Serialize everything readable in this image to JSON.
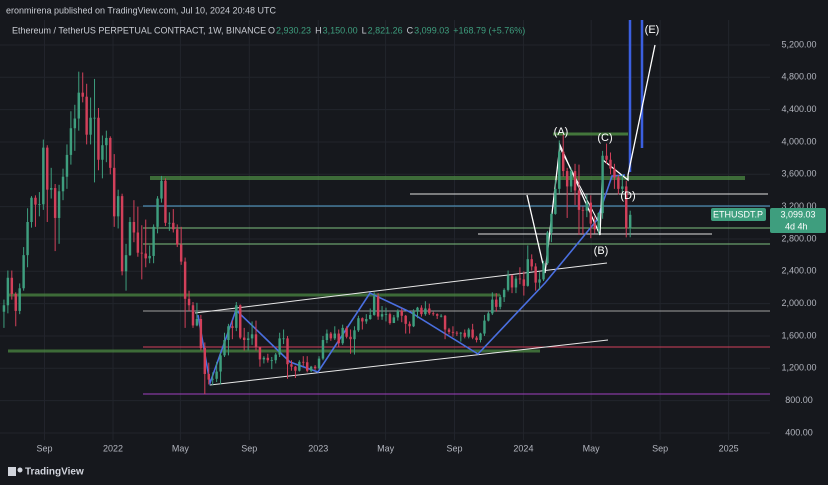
{
  "chart_data": {
    "type": "candlestick",
    "published": "eronmirena published on TradingView.com, Jul 10, 2024 20:48 UTC",
    "title": "Ethereum / TetherUS PERPETUAL CONTRACT, 1W, BINANCE",
    "ohlc_labels": [
      {
        "label": "O",
        "value": "2,930.23"
      },
      {
        "label": "H",
        "value": "3,150.00"
      },
      {
        "label": "L",
        "value": "2,821.26"
      },
      {
        "label": "C",
        "value": "3,099.03"
      }
    ],
    "change": "+168.79 (+5.76%)",
    "symbol_tag": "ETHUSDT.P",
    "last_price_label": "3,099.03",
    "countdown": "4d 4h",
    "wave_labels": [
      "(A)",
      "(B)",
      "(C)",
      "(D)",
      "(E)"
    ],
    "footer": "TradingView",
    "up_color": "#3e9e7e",
    "down_color": "#d2405a",
    "ylim": [
      313,
      5509
    ],
    "yticks": [
      {
        "value": 400,
        "label": "400.00"
      },
      {
        "value": 800,
        "label": "800.00"
      },
      {
        "value": 1200,
        "label": "1,200.00"
      },
      {
        "value": 1600,
        "label": "1,600.00"
      },
      {
        "value": 2000,
        "label": "2,000.00"
      },
      {
        "value": 2400,
        "label": "2,400.00"
      },
      {
        "value": 2800,
        "label": "2,800.00"
      },
      {
        "value": 3200,
        "label": "3,200.00"
      },
      {
        "value": 3600,
        "label": "3,600.00"
      },
      {
        "value": 4000,
        "label": "4,000.00"
      },
      {
        "value": 4400,
        "label": "4,400.00"
      },
      {
        "value": 4800,
        "label": "4,800.00"
      },
      {
        "value": 5200,
        "label": "5,200.00"
      }
    ],
    "xlim": [
      -1,
      194.5
    ],
    "xticks": [
      {
        "value": 10.3,
        "label": "Sep"
      },
      {
        "value": 27.7,
        "label": "2022"
      },
      {
        "value": 44.8,
        "label": "May"
      },
      {
        "value": 62.3,
        "label": "Sep"
      },
      {
        "value": 79.8,
        "label": "2023"
      },
      {
        "value": 96.9,
        "label": "May"
      },
      {
        "value": 114.4,
        "label": "Sep"
      },
      {
        "value": 131.9,
        "label": "2024"
      },
      {
        "value": 149.1,
        "label": "May"
      },
      {
        "value": 166.6,
        "label": "Sep"
      },
      {
        "value": 184,
        "label": "2025"
      }
    ],
    "open": [
      1900,
      1980,
      2320,
      2120,
      1910,
      2190,
      2600,
      3010,
      3310,
      3225,
      3230,
      3930,
      3410,
      3430,
      3060,
      3390,
      3570,
      3840,
      4170,
      4290,
      4610,
      4560,
      4090,
      4300,
      4300,
      3780,
      3960,
      4050,
      3680,
      3080,
      3330,
      2400,
      2600,
      3010,
      2880,
      2630,
      2620,
      2560,
      2590,
      2950,
      3300,
      3520,
      3000,
      3000,
      2920,
      2730,
      2520,
      2060,
      1980,
      1730,
      1810,
      1450,
      1130,
      1060,
      1070,
      1160,
      1360,
      1550,
      1720,
      1700,
      1980,
      1580,
      1550,
      1570,
      1620,
      1460,
      1310,
      1330,
      1300,
      1300,
      1370,
      1570,
      1570,
      1250,
      1220,
      1170,
      1280,
      1275,
      1170,
      1220,
      1200,
      1320,
      1550,
      1630,
      1570,
      1630,
      1510,
      1700,
      1590,
      1560,
      1670,
      1820,
      1780,
      1810,
      1860,
      2090,
      1840,
      1870,
      1870,
      1760,
      1830,
      1910,
      1850,
      1750,
      1720,
      1900,
      1950,
      1870,
      1940,
      1880,
      1870,
      1850,
      1850,
      1680,
      1650,
      1640,
      1630,
      1640,
      1590,
      1680,
      1580,
      1550,
      1630,
      1790,
      1880,
      2050,
      1960,
      2080,
      2170,
      2350,
      2200,
      2310,
      2300,
      2220,
      2550,
      2460,
      2260,
      2300,
      2500,
      2880,
      3110,
      3420,
      3880,
      3640,
      3450,
      3640,
      3400,
      3160,
      3150,
      3250,
      2990,
      2920,
      3120,
      3830,
      3780,
      3670,
      3560,
      3420,
      3450,
      2930.23
    ],
    "high": [
      2050,
      2410,
      2410,
      2140,
      2250,
      2700,
      3180,
      3330,
      3340,
      3380,
      4030,
      3960,
      3680,
      3480,
      3470,
      3670,
      3970,
      4380,
      4460,
      4870,
      4860,
      4720,
      4550,
      4780,
      4420,
      4080,
      4140,
      4070,
      3850,
      3410,
      3360,
      2740,
      3070,
      3280,
      3200,
      2970,
      3040,
      2720,
      2980,
      3330,
      3580,
      3550,
      3130,
      3170,
      2980,
      2950,
      2570,
      2160,
      2020,
      2010,
      1860,
      1520,
      1270,
      1150,
      1280,
      1390,
      1640,
      1750,
      1790,
      2020,
      1990,
      1700,
      1650,
      1780,
      1790,
      1470,
      1350,
      1380,
      1340,
      1390,
      1640,
      1680,
      1600,
      1300,
      1230,
      1300,
      1350,
      1350,
      1230,
      1240,
      1350,
      1600,
      1680,
      1650,
      1720,
      1680,
      1740,
      1720,
      1680,
      1720,
      1850,
      1830,
      1870,
      1940,
      2140,
      2130,
      1970,
      1950,
      1890,
      1860,
      1930,
      1940,
      1860,
      1780,
      1930,
      1960,
      1980,
      2030,
      2000,
      1900,
      1880,
      1870,
      1860,
      1700,
      1720,
      1660,
      1650,
      1680,
      1700,
      1750,
      1600,
      1640,
      1860,
      1900,
      2140,
      2130,
      2110,
      2190,
      2410,
      2360,
      2340,
      2450,
      2400,
      2720,
      2610,
      2500,
      2390,
      2530,
      2900,
      3130,
      3530,
      4020,
      4090,
      3680,
      3680,
      3730,
      3720,
      3200,
      3350,
      3340,
      3080,
      3130,
      3890,
      3980,
      3870,
      3730,
      3590,
      3600,
      3520,
      3150
    ],
    "low": [
      1700,
      1880,
      2050,
      1720,
      1870,
      2160,
      2450,
      2940,
      2950,
      3080,
      3160,
      3010,
      3300,
      2650,
      2740,
      3280,
      3420,
      3720,
      3890,
      4140,
      4490,
      3970,
      3970,
      3500,
      3650,
      3550,
      3750,
      3600,
      2950,
      2930,
      2350,
      2160,
      2590,
      2760,
      2580,
      2300,
      2450,
      2500,
      2500,
      2870,
      3250,
      2960,
      2900,
      2880,
      2700,
      2480,
      1700,
      1910,
      1700,
      1720,
      1420,
      880,
      1000,
      990,
      1030,
      1000,
      1340,
      1360,
      1560,
      1660,
      1560,
      1420,
      1420,
      1490,
      1420,
      1220,
      1260,
      1270,
      1190,
      1260,
      1340,
      1500,
      1070,
      1170,
      1080,
      1160,
      1230,
      1150,
      1150,
      1180,
      1190,
      1300,
      1510,
      1540,
      1550,
      1460,
      1490,
      1570,
      1380,
      1370,
      1650,
      1680,
      1750,
      1800,
      1850,
      1800,
      1800,
      1780,
      1740,
      1770,
      1790,
      1770,
      1630,
      1630,
      1710,
      1820,
      1840,
      1850,
      1860,
      1850,
      1810,
      1830,
      1560,
      1620,
      1590,
      1600,
      1530,
      1570,
      1570,
      1560,
      1520,
      1520,
      1600,
      1780,
      1860,
      1900,
      1930,
      2020,
      2150,
      2130,
      2130,
      2240,
      2100,
      2210,
      2410,
      2160,
      2170,
      2280,
      2480,
      2760,
      3100,
      3360,
      3570,
      3060,
      3380,
      3220,
      2850,
      2860,
      3070,
      2810,
      2870,
      2860,
      3050,
      3730,
      3600,
      3420,
      3350,
      3360,
      2820,
      2821.26
    ],
    "close": [
      1980,
      2320,
      2120,
      1910,
      2190,
      2600,
      3010,
      3310,
      3225,
      3230,
      3930,
      3410,
      3430,
      3060,
      3390,
      3570,
      3840,
      4170,
      4290,
      4610,
      4560,
      4090,
      4300,
      4300,
      3780,
      3960,
      4050,
      3680,
      3080,
      3330,
      2400,
      2600,
      3010,
      2880,
      2630,
      2620,
      2560,
      2590,
      2950,
      3300,
      3520,
      3000,
      3000,
      2920,
      2730,
      2520,
      2060,
      1980,
      1730,
      1810,
      1450,
      1130,
      1060,
      1070,
      1160,
      1360,
      1550,
      1720,
      1700,
      1980,
      1580,
      1550,
      1570,
      1620,
      1460,
      1310,
      1330,
      1300,
      1300,
      1370,
      1570,
      1570,
      1250,
      1220,
      1170,
      1280,
      1275,
      1170,
      1220,
      1200,
      1320,
      1550,
      1630,
      1570,
      1630,
      1510,
      1700,
      1590,
      1560,
      1670,
      1820,
      1780,
      1810,
      1860,
      2090,
      1840,
      1870,
      1870,
      1760,
      1830,
      1910,
      1850,
      1750,
      1720,
      1900,
      1950,
      1870,
      1940,
      1880,
      1870,
      1850,
      1850,
      1680,
      1650,
      1640,
      1630,
      1640,
      1590,
      1680,
      1580,
      1550,
      1630,
      1790,
      1880,
      2050,
      1960,
      2080,
      2170,
      2350,
      2200,
      2310,
      2300,
      2220,
      2550,
      2460,
      2260,
      2300,
      2500,
      2880,
      3110,
      3420,
      3880,
      3640,
      3450,
      3640,
      3400,
      3160,
      3150,
      3250,
      2990,
      2920,
      3120,
      3830,
      3780,
      3670,
      3560,
      3420,
      3450,
      2930.23,
      3099.03
    ]
  }
}
